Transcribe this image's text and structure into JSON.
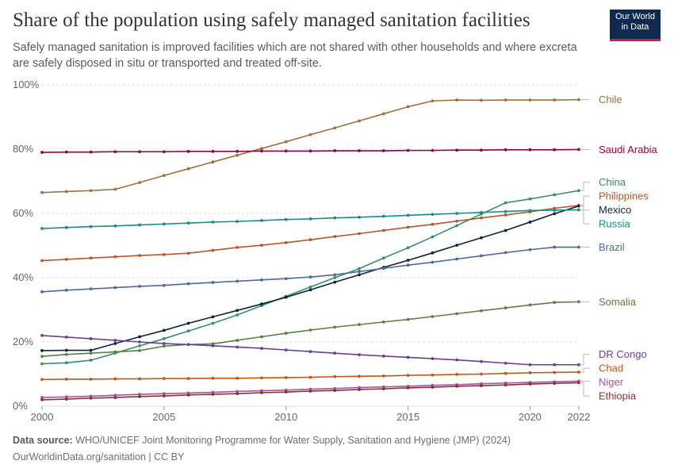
{
  "header": {
    "title": "Share of the population using safely managed sanitation facilities",
    "subtitle": "Safely managed sanitation is improved facilities which are not shared with other households and where excreta are safely disposed in situ or transported and treated off-site.",
    "logo_line1": "Our World",
    "logo_line2": "in Data"
  },
  "footer": {
    "source_label": "Data source:",
    "source_text": "WHO/UNICEF Joint Monitoring Programme for Water Supply, Sanitation and Hygiene (JMP) (2024)",
    "link_text": "OurWorldinData.org/sanitation | CC BY"
  },
  "colors": {
    "logo_bg": "#0e2a4e",
    "logo_accent": "#c7213c",
    "grid": "#dddddd"
  },
  "chart_data": {
    "type": "line",
    "title": "Share of the population using safely managed sanitation facilities",
    "xlabel": "",
    "ylabel": "",
    "x": [
      2000,
      2001,
      2002,
      2003,
      2004,
      2005,
      2006,
      2007,
      2008,
      2009,
      2010,
      2011,
      2012,
      2013,
      2014,
      2015,
      2016,
      2017,
      2018,
      2019,
      2020,
      2021,
      2022
    ],
    "xlim": [
      2000,
      2022
    ],
    "ylim": [
      0,
      100
    ],
    "x_ticks": [
      2000,
      2005,
      2010,
      2015,
      2020,
      2022
    ],
    "y_ticks": [
      0,
      20,
      40,
      60,
      80,
      100
    ],
    "y_tick_labels": [
      "0%",
      "20%",
      "40%",
      "60%",
      "80%",
      "100%"
    ],
    "grid": true,
    "legend": "right, end-of-line labels",
    "series": [
      {
        "name": "Chile",
        "color": "#99733d",
        "values": [
          66.5,
          66.8,
          67.1,
          67.5,
          69.6,
          71.8,
          73.9,
          76.0,
          78.1,
          80.2,
          82.3,
          84.5,
          86.6,
          88.8,
          91.0,
          93.2,
          95.0,
          95.3,
          95.2,
          95.3,
          95.3,
          95.3,
          95.4
        ]
      },
      {
        "name": "Saudi Arabia",
        "color": "#970046",
        "values": [
          79.0,
          79.1,
          79.1,
          79.2,
          79.2,
          79.2,
          79.3,
          79.3,
          79.3,
          79.4,
          79.4,
          79.4,
          79.5,
          79.5,
          79.5,
          79.6,
          79.6,
          79.7,
          79.7,
          79.8,
          79.8,
          79.8,
          79.9
        ]
      },
      {
        "name": "China",
        "color": "#3a8e6c",
        "values": [
          13.2,
          13.5,
          14.3,
          16.5,
          18.8,
          21.0,
          23.4,
          25.8,
          28.4,
          31.3,
          34.2,
          37.1,
          40.0,
          42.8,
          46.1,
          49.3,
          52.7,
          56.2,
          59.8,
          63.3,
          64.5,
          65.8,
          67.1
        ]
      },
      {
        "name": "Philippines",
        "color": "#b4582d",
        "values": [
          45.3,
          45.7,
          46.1,
          46.5,
          46.9,
          47.2,
          47.6,
          48.5,
          49.4,
          50.1,
          50.9,
          51.8,
          52.8,
          53.7,
          54.7,
          55.7,
          56.6,
          57.6,
          58.6,
          59.5,
          60.5,
          61.6,
          62.5
        ]
      },
      {
        "name": "Mexico",
        "color": "#0d233e",
        "values": [
          17.3,
          17.4,
          17.4,
          19.5,
          21.6,
          23.6,
          25.8,
          27.8,
          29.8,
          31.8,
          33.9,
          36.2,
          38.6,
          40.9,
          43.2,
          45.4,
          47.7,
          50.1,
          52.4,
          54.7,
          57.3,
          59.9,
          62.3
        ]
      },
      {
        "name": "Russia",
        "color": "#188c8c",
        "values": [
          55.3,
          55.6,
          55.9,
          56.1,
          56.4,
          56.7,
          57.0,
          57.3,
          57.5,
          57.8,
          58.1,
          58.3,
          58.6,
          58.8,
          59.1,
          59.4,
          59.7,
          60.0,
          60.3,
          60.6,
          60.9,
          61.0,
          61.1
        ]
      },
      {
        "name": "Brazil",
        "color": "#4c6a9c",
        "values": [
          35.6,
          36.1,
          36.5,
          36.9,
          37.3,
          37.6,
          38.1,
          38.5,
          38.9,
          39.3,
          39.7,
          40.2,
          40.9,
          41.9,
          42.9,
          43.9,
          44.8,
          45.8,
          46.8,
          47.8,
          48.7,
          49.5,
          49.5
        ]
      },
      {
        "name": "Somalia",
        "color": "#578145",
        "values": [
          15.5,
          16.1,
          16.5,
          16.9,
          17.3,
          18.7,
          19.2,
          19.4,
          20.5,
          21.6,
          22.7,
          23.7,
          24.6,
          25.4,
          26.2,
          27.0,
          27.9,
          28.8,
          29.7,
          30.6,
          31.5,
          32.3,
          32.5
        ]
      },
      {
        "name": "DR Congo",
        "color": "#6d3e91",
        "values": [
          22.0,
          21.5,
          21.0,
          20.5,
          20.0,
          19.5,
          19.2,
          18.8,
          18.4,
          18.0,
          17.5,
          17.0,
          16.5,
          16.0,
          15.6,
          15.2,
          14.8,
          14.4,
          13.9,
          13.4,
          12.9,
          12.9,
          12.9
        ]
      },
      {
        "name": "Chad",
        "color": "#c05917",
        "values": [
          8.3,
          8.4,
          8.4,
          8.5,
          8.5,
          8.6,
          8.6,
          8.7,
          8.7,
          8.8,
          8.9,
          9.0,
          9.2,
          9.3,
          9.4,
          9.6,
          9.7,
          9.9,
          10.0,
          10.2,
          10.4,
          10.5,
          10.6
        ]
      },
      {
        "name": "Niger",
        "color": "#a2559c",
        "values": [
          2.7,
          2.9,
          3.1,
          3.4,
          3.7,
          3.9,
          4.1,
          4.3,
          4.6,
          4.8,
          5.0,
          5.3,
          5.5,
          5.8,
          6.0,
          6.2,
          6.5,
          6.7,
          7.0,
          7.2,
          7.4,
          7.6,
          7.8
        ]
      },
      {
        "name": "Ethiopia",
        "color": "#883039",
        "values": [
          2.0,
          2.2,
          2.5,
          2.7,
          3.0,
          3.2,
          3.5,
          3.7,
          3.9,
          4.2,
          4.4,
          4.7,
          4.9,
          5.2,
          5.4,
          5.7,
          5.9,
          6.2,
          6.4,
          6.6,
          6.9,
          7.1,
          7.3
        ]
      }
    ]
  }
}
